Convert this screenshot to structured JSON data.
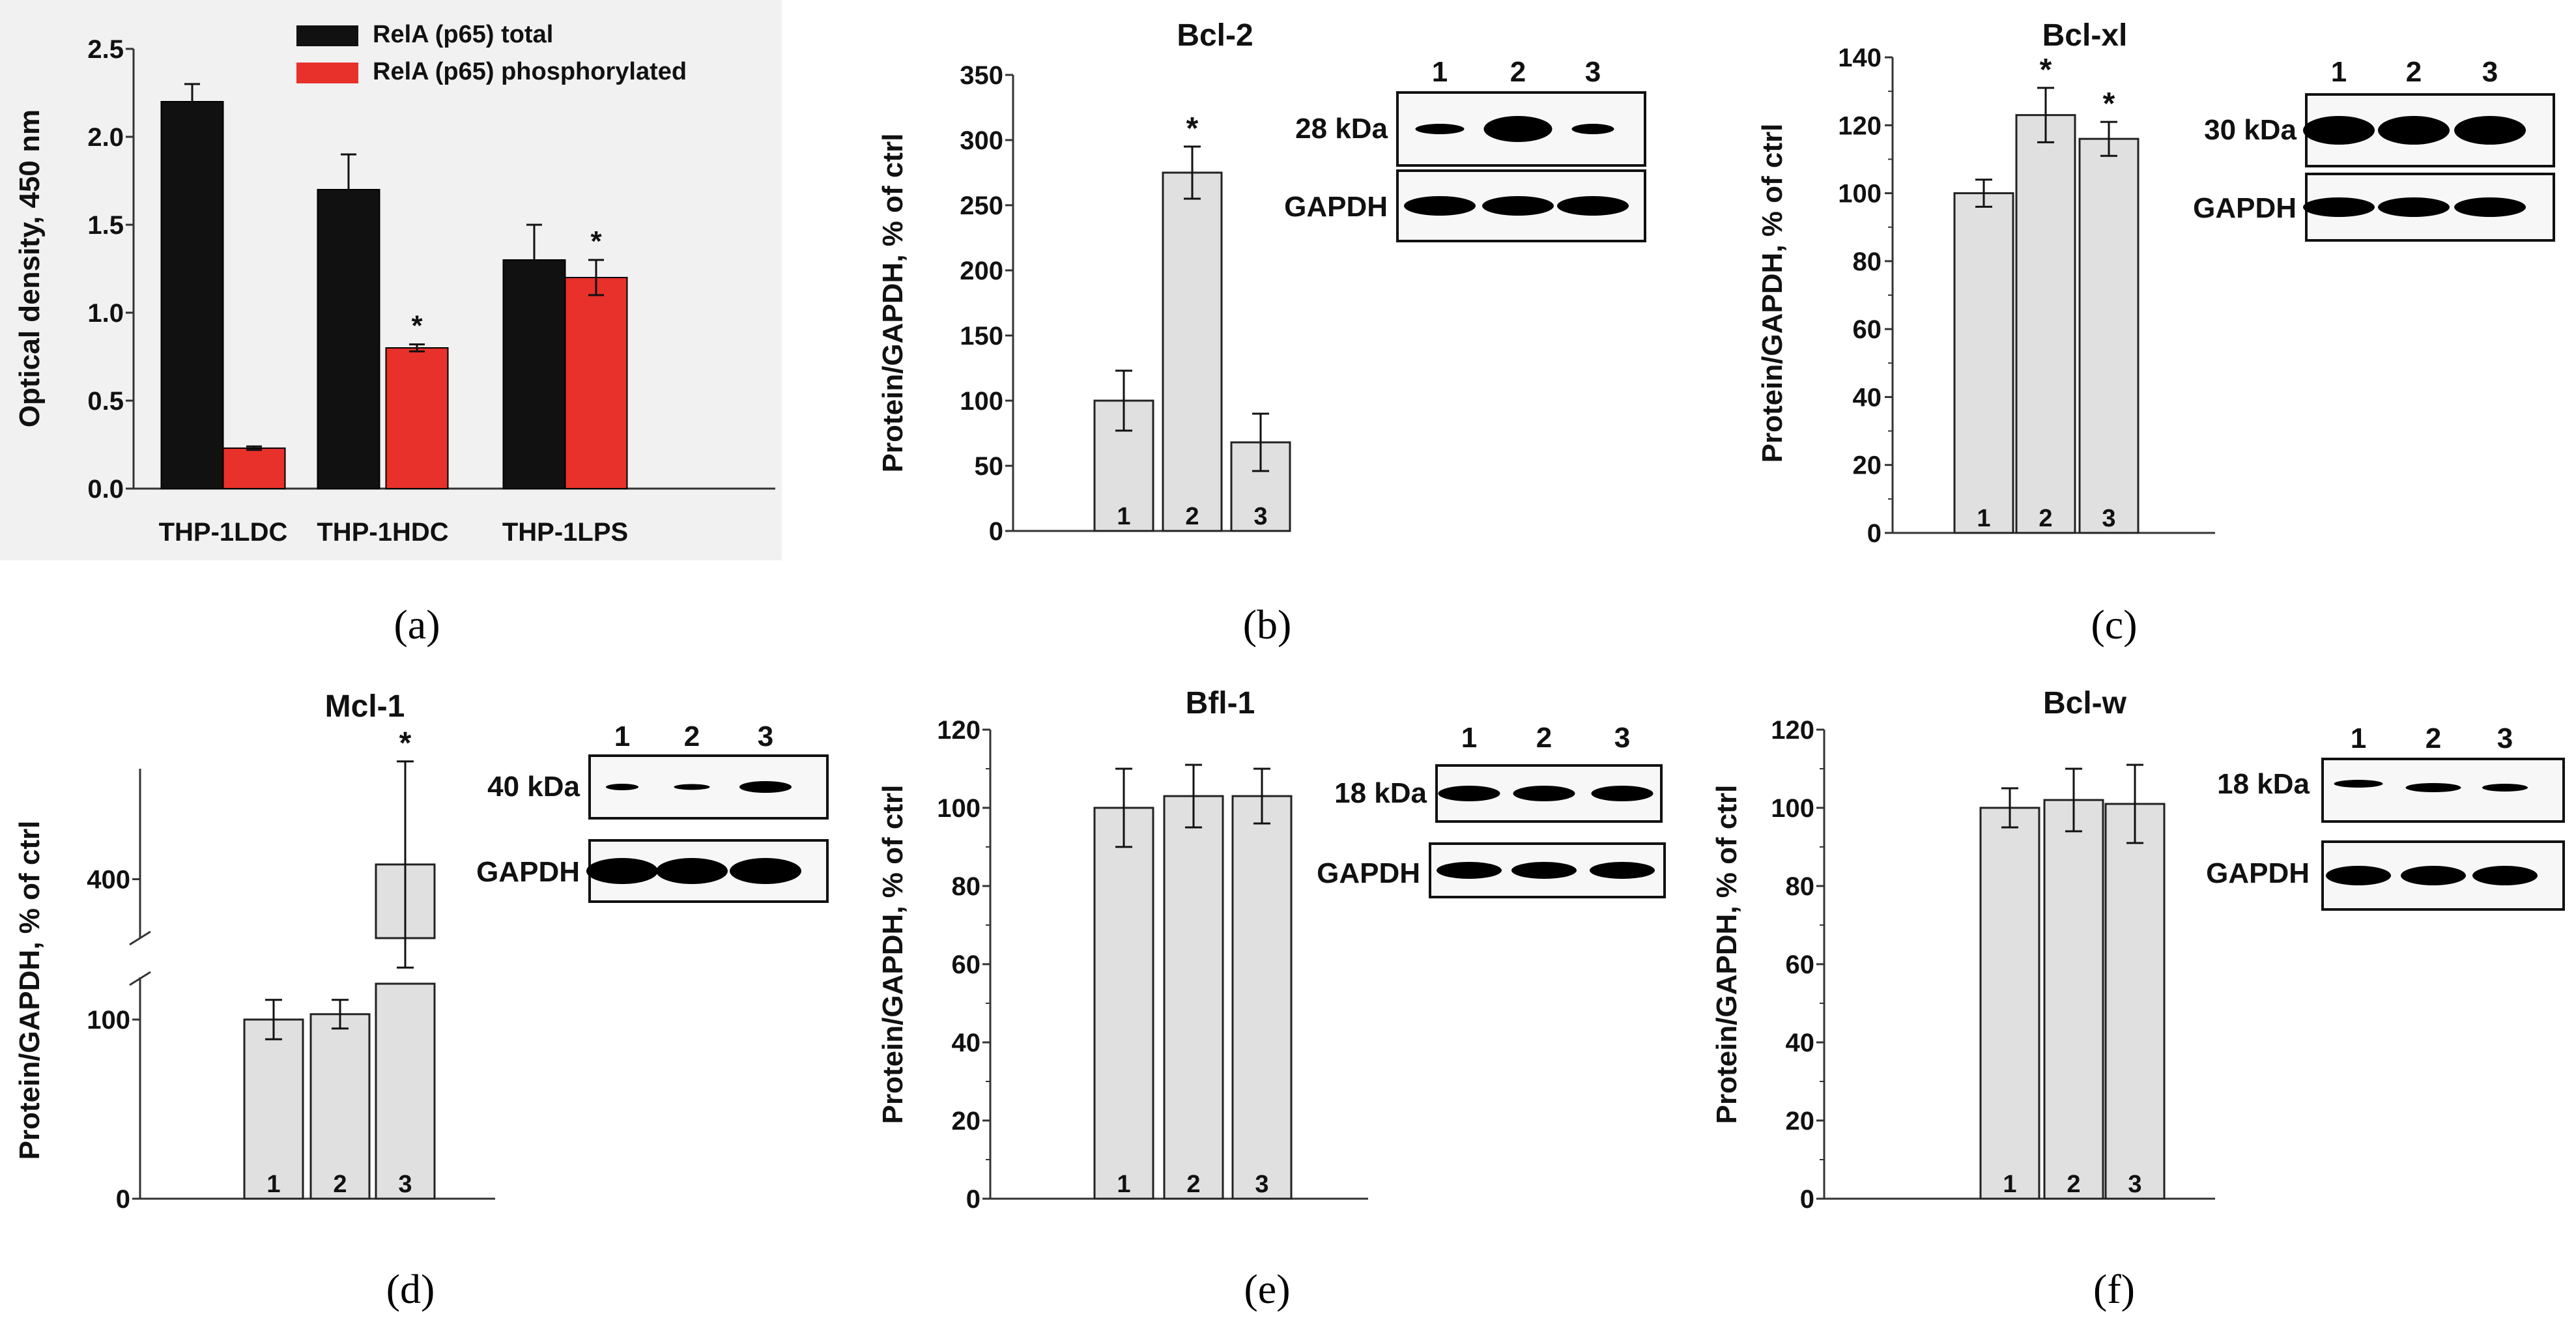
{
  "chart_data": [
    {
      "id": "a",
      "type": "bar",
      "panel_label": "(a)",
      "title": "",
      "ylabel": "Optical density, 450 nm",
      "xlabel": "",
      "ylim": [
        0,
        2.5
      ],
      "yticks": [
        "0.0",
        "0.5",
        "1.0",
        "1.5",
        "2.0",
        "2.5"
      ],
      "categories": [
        "THP-1LDC",
        "THP-1HDC",
        "THP-1LPS"
      ],
      "series": [
        {
          "name": "RelA (p65) total",
          "color": "#111111",
          "values": [
            2.2,
            1.7,
            1.3
          ],
          "errors": [
            0.1,
            0.2,
            0.2
          ],
          "stars": [
            "",
            "",
            ""
          ]
        },
        {
          "name": "RelA (p65) phosphorylated",
          "color": "#e8312a",
          "values": [
            0.23,
            0.8,
            1.2
          ],
          "errors": [
            0.01,
            0.02,
            0.1
          ],
          "stars": [
            "",
            "*",
            "*"
          ]
        }
      ]
    },
    {
      "id": "b",
      "type": "bar",
      "panel_label": "(b)",
      "title": "Bcl-2",
      "ylabel": "Protein/GAPDH, % of ctrl",
      "ylim": [
        0,
        350
      ],
      "yticks": [
        "0",
        "50",
        "100",
        "150",
        "200",
        "250",
        "300",
        "350"
      ],
      "categories": [
        "1",
        "2",
        "3"
      ],
      "values": [
        100,
        275,
        68
      ],
      "errors": [
        23,
        20,
        22
      ],
      "stars": [
        "",
        "*",
        ""
      ],
      "blot": {
        "lanes": [
          "1",
          "2",
          "3"
        ],
        "labels": [
          "28 kDa",
          "GAPDH"
        ]
      }
    },
    {
      "id": "c",
      "type": "bar",
      "panel_label": "(c)",
      "title": "Bcl-xl",
      "ylabel": "Protein/GAPDH, % of ctrl",
      "ylim": [
        0,
        140
      ],
      "yticks": [
        "0",
        "20",
        "40",
        "60",
        "80",
        "100",
        "120",
        "140"
      ],
      "categories": [
        "1",
        "2",
        "3"
      ],
      "values": [
        100,
        123,
        116
      ],
      "errors": [
        4,
        8,
        5
      ],
      "stars": [
        "",
        "*",
        "*"
      ],
      "blot": {
        "lanes": [
          "1",
          "2",
          "3"
        ],
        "labels": [
          "30 kDa",
          "GAPDH"
        ]
      }
    },
    {
      "id": "d",
      "type": "bar",
      "panel_label": "(d)",
      "title": "Mcl-1",
      "ylabel": "Protein/GAPDH, % of ctrl",
      "ylim": [
        0,
        550
      ],
      "axis_break": [
        120,
        320
      ],
      "yticks": [
        "0",
        "100",
        "400"
      ],
      "categories": [
        "1",
        "2",
        "3"
      ],
      "values": [
        100,
        103,
        420
      ],
      "errors": [
        11,
        8,
        140
      ],
      "stars": [
        "",
        "",
        "*"
      ],
      "blot": {
        "lanes": [
          "1",
          "2",
          "3"
        ],
        "labels": [
          "40 kDa",
          "GAPDH"
        ]
      }
    },
    {
      "id": "e",
      "type": "bar",
      "panel_label": "(e)",
      "title": "Bfl-1",
      "ylabel": "Protein/GAPDH, % of ctrl",
      "ylim": [
        0,
        120
      ],
      "yticks": [
        "0",
        "20",
        "40",
        "60",
        "80",
        "100",
        "120"
      ],
      "categories": [
        "1",
        "2",
        "3"
      ],
      "values": [
        100,
        103,
        103
      ],
      "errors": [
        10,
        8,
        7
      ],
      "stars": [
        "",
        "",
        ""
      ],
      "blot": {
        "lanes": [
          "1",
          "2",
          "3"
        ],
        "labels": [
          "18 kDa",
          "GAPDH"
        ]
      }
    },
    {
      "id": "f",
      "type": "bar",
      "panel_label": "(f)",
      "title": "Bcl-w",
      "ylabel": "Protein/GAPDH, % of ctrl",
      "ylim": [
        0,
        120
      ],
      "yticks": [
        "0",
        "20",
        "40",
        "60",
        "80",
        "100",
        "120"
      ],
      "categories": [
        "1",
        "2",
        "3"
      ],
      "values": [
        100,
        102,
        101
      ],
      "errors": [
        5,
        8,
        10
      ],
      "stars": [
        "",
        "",
        ""
      ],
      "blot": {
        "lanes": [
          "1",
          "2",
          "3"
        ],
        "labels": [
          "18 kDa",
          "GAPDH"
        ]
      }
    }
  ],
  "colors": {
    "bar_fill": "#e0e0e0",
    "panel_a_background": "#f1f1f1",
    "axis": "#333333"
  }
}
